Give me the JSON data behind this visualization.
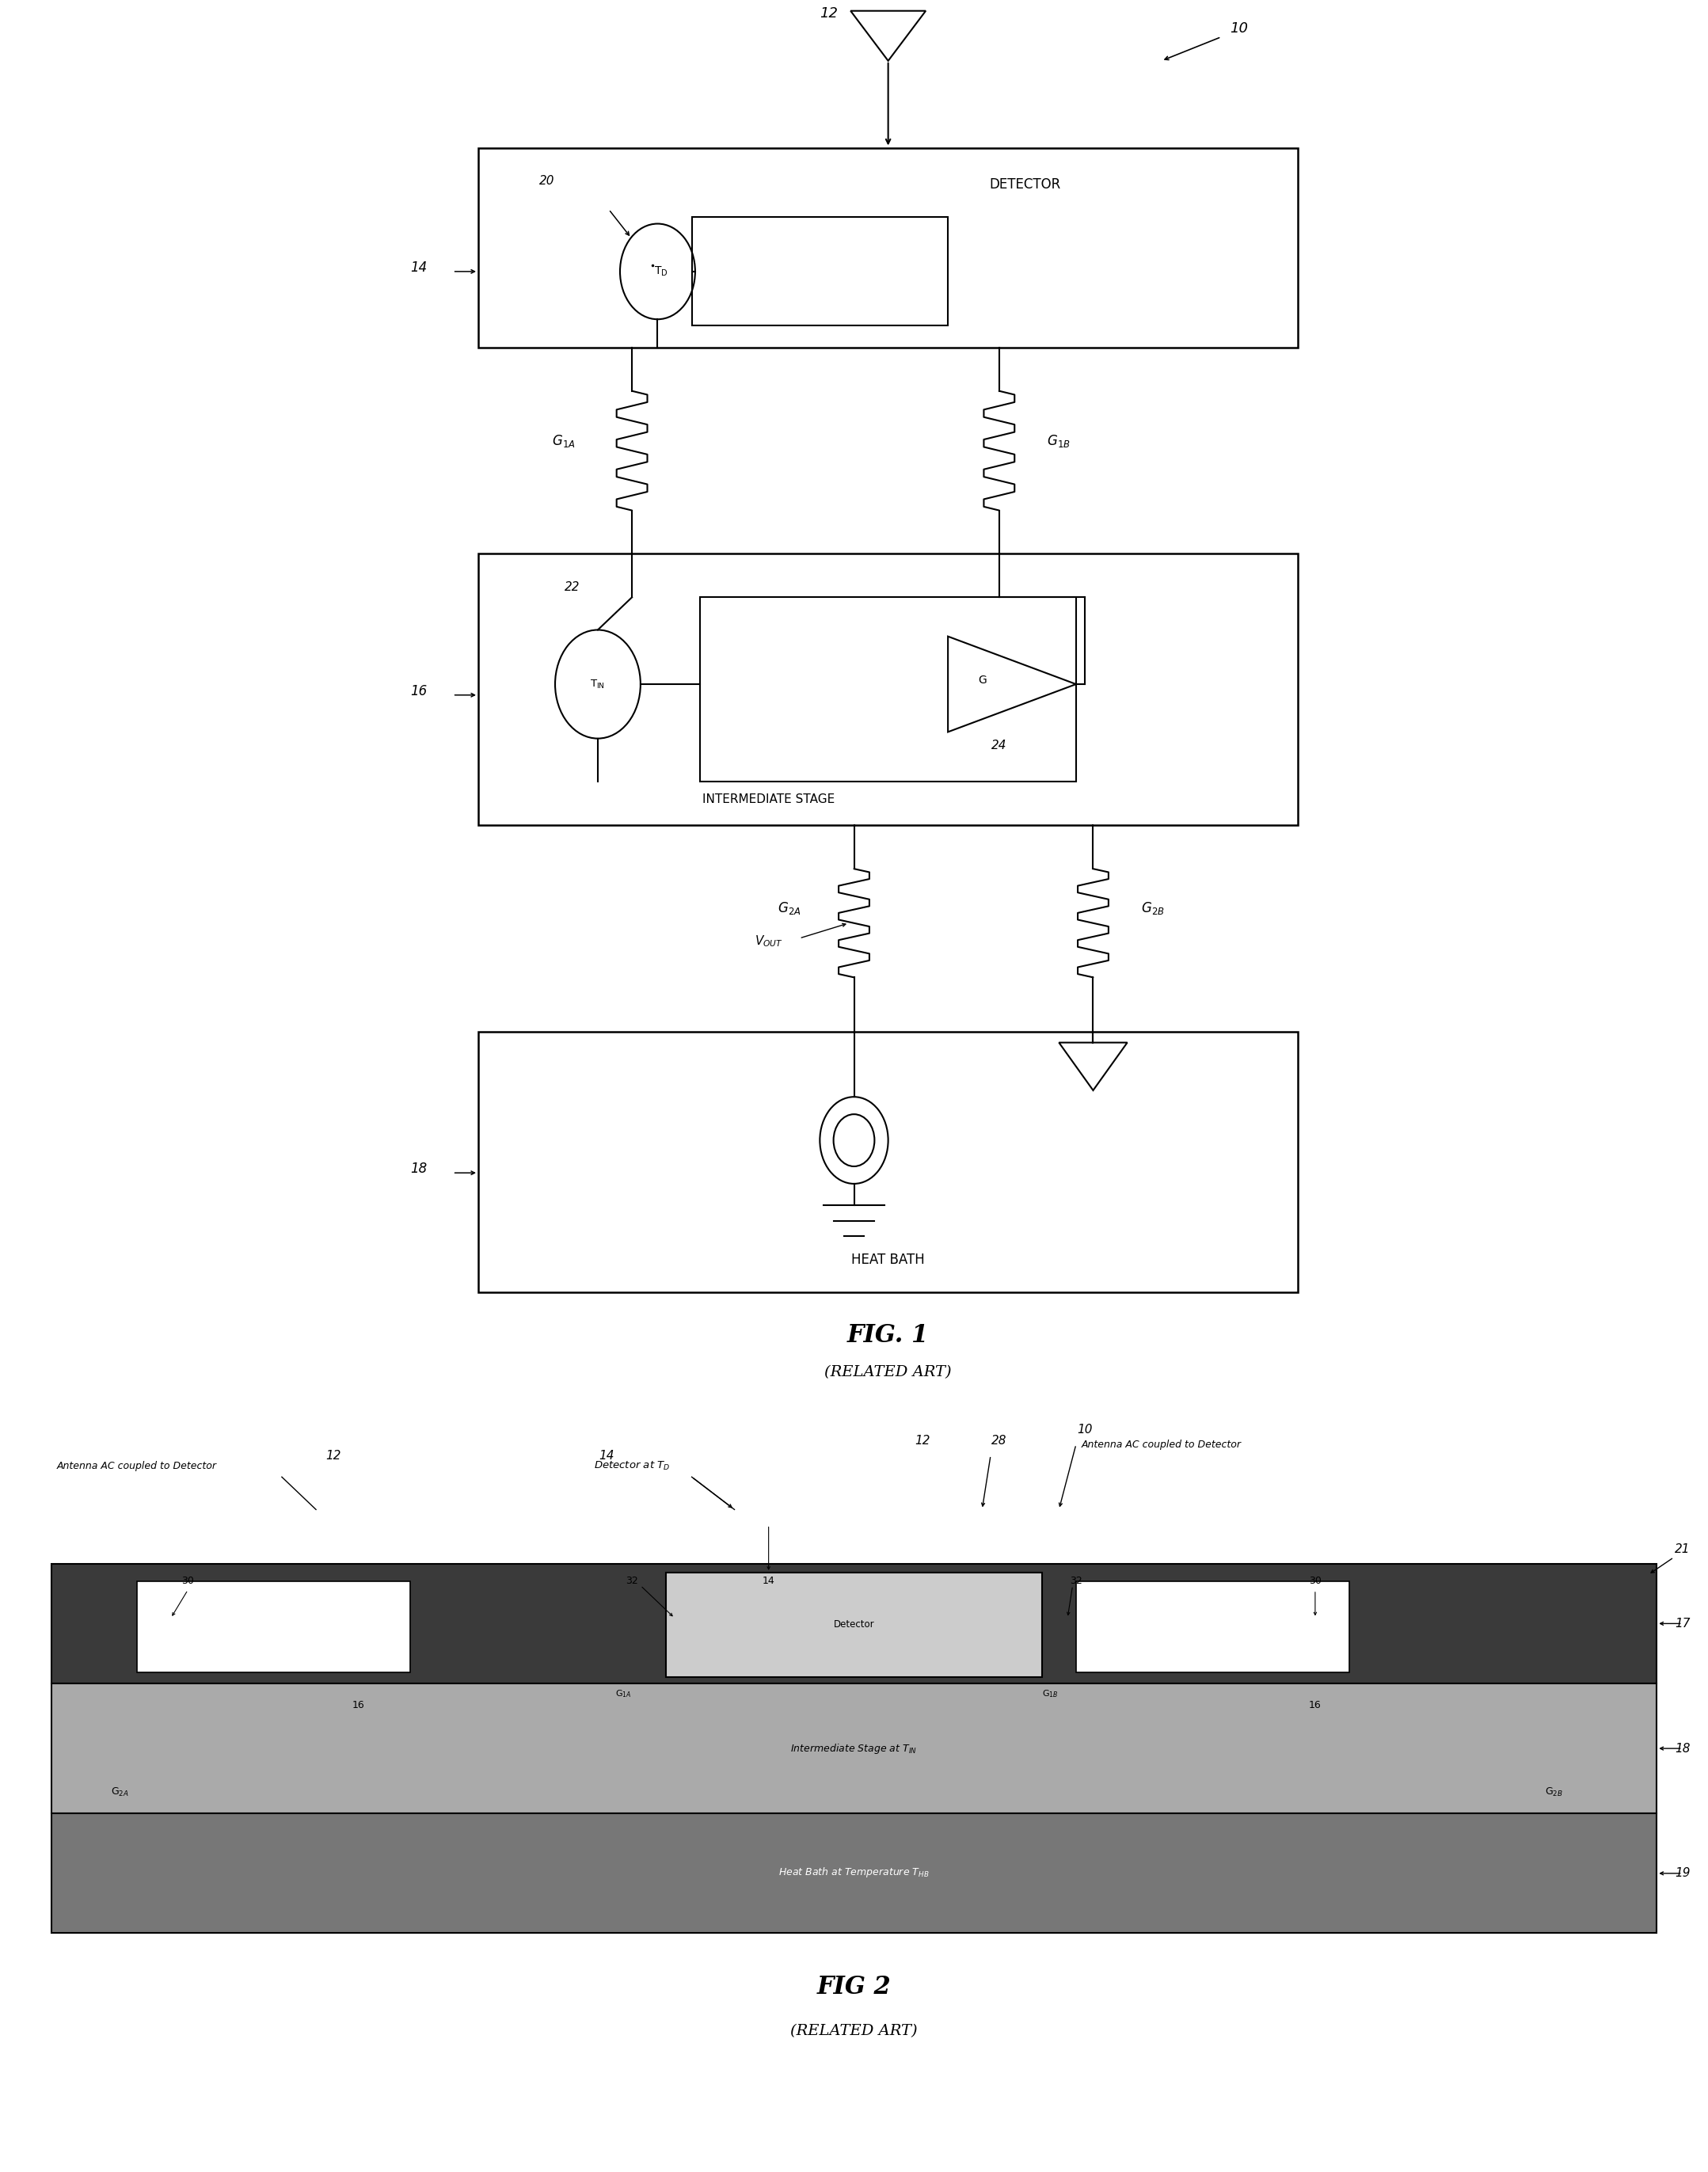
{
  "fig_width": 21.57,
  "fig_height": 27.43,
  "bg_color": "#ffffff",
  "fig1_caption": "FIG. 1",
  "fig1_sub": "(RELATED ART)",
  "fig2_caption": "FIG 2",
  "fig2_sub": "(RELATED ART)"
}
